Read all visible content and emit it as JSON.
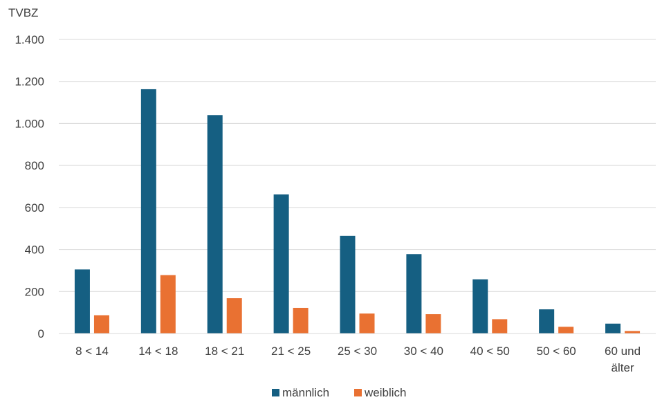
{
  "chart_data": {
    "type": "bar",
    "ylabel": "TVBZ",
    "categories": [
      "8 < 14",
      "14 < 18",
      "18 < 21",
      "21 < 25",
      "25 < 30",
      "30 < 40",
      "40 < 50",
      "50 < 60",
      "60 und älter"
    ],
    "series": [
      {
        "name": "männlich",
        "color": "#155f82",
        "values": [
          305,
          1163,
          1040,
          662,
          465,
          378,
          258,
          115,
          47
        ]
      },
      {
        "name": "weiblich",
        "color": "#e97132",
        "values": [
          87,
          278,
          168,
          122,
          95,
          92,
          68,
          32,
          12
        ]
      }
    ],
    "ylim": [
      0,
      1400
    ],
    "yticks": [
      0,
      200,
      400,
      600,
      800,
      1000,
      1200,
      1400
    ],
    "ytick_labels": [
      "0",
      "200",
      "400",
      "600",
      "800",
      "1.000",
      "1.200",
      "1.400"
    ],
    "grid": true,
    "legend_position": "bottom"
  }
}
